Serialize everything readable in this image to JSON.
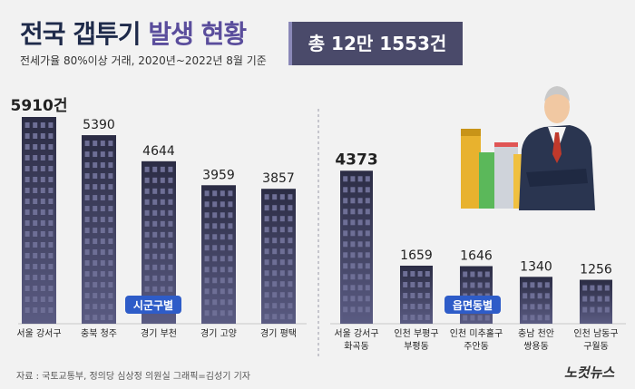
{
  "header": {
    "title_part1": "전국 갭투기",
    "title_part2": "발생 현황",
    "subtitle": "전세가율 80%이상 거래, 2020년~2022년 8월 기준",
    "total": "총 12만 1553건"
  },
  "chart_data": [
    {
      "type": "bar",
      "group_label": "시군구별",
      "categories": [
        [
          "서울 강서구"
        ],
        [
          "충북 청주"
        ],
        [
          "경기 부천"
        ],
        [
          "경기 고양"
        ],
        [
          "경기 평택"
        ]
      ],
      "values": [
        5910,
        5390,
        4644,
        3959,
        3857
      ],
      "value_labels": [
        "5910건",
        "5390",
        "4644",
        "3959",
        "3857"
      ]
    },
    {
      "type": "bar",
      "group_label": "읍면동별",
      "categories": [
        [
          "서울 강서구",
          "화곡동"
        ],
        [
          "인천 부평구",
          "부평동"
        ],
        [
          "인천 미추홀구",
          "주안동"
        ],
        [
          "충남 천안",
          "쌍용동"
        ],
        [
          "인천 남동구",
          "구월동"
        ]
      ],
      "values": [
        4373,
        1659,
        1646,
        1340,
        1256
      ],
      "value_labels": [
        "4373",
        "1659",
        "1646",
        "1340",
        "1256"
      ]
    }
  ],
  "footer": {
    "source": "자료 : 국토교통부, 정의당 심상정 의원실   그래픽=김성기 기자",
    "logo": "노컷뉴스"
  },
  "colors": {
    "bar_top": "#2b2c44",
    "bar_bottom": "#5a5b82",
    "window": "#6e6f96",
    "badge": "#2e5cc8",
    "title": "#1e2a4a",
    "title_accent": "#5a4d9c"
  }
}
